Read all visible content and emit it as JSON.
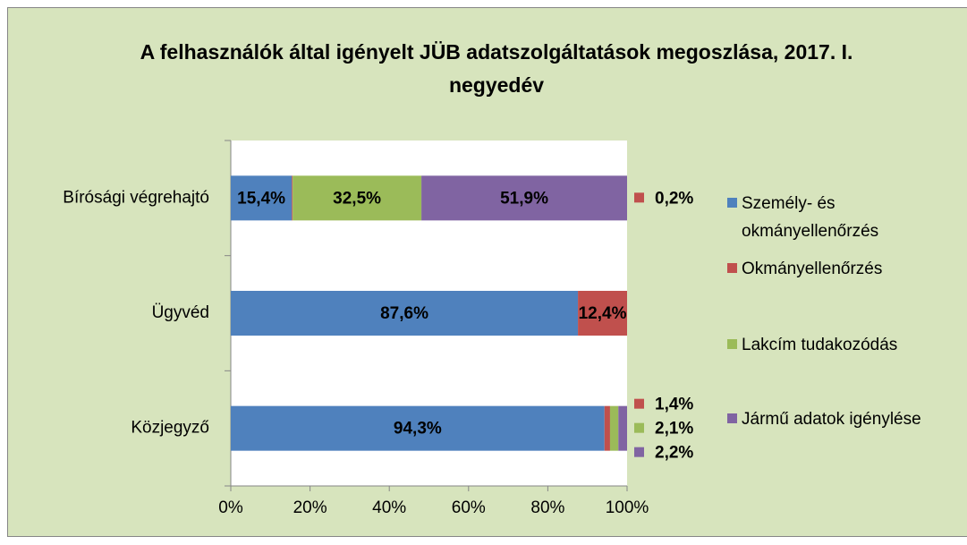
{
  "chart_data": {
    "type": "stacked-barh",
    "title": "A felhasználók által igényelt JÜB adatszolgáltatások megoszlása, 2017. I. negyedév",
    "categories": [
      "Bírósági végrehajtó",
      "Ügyvéd",
      "Közjegyző"
    ],
    "series": [
      {
        "name": "Személy- és okmányellenőrzés",
        "color": "#4f81bd",
        "values": [
          15.4,
          87.6,
          94.3
        ],
        "value_labels": [
          "15,4%",
          "87,6%",
          "94,3%"
        ]
      },
      {
        "name": "Okmányellenőrzés",
        "color": "#c0504d",
        "values": [
          0.2,
          12.4,
          1.4
        ],
        "value_labels": [
          "0,2%",
          "12,4%",
          "1,4%"
        ]
      },
      {
        "name": "Lakcím tudakozódás",
        "color": "#9bbb59",
        "values": [
          32.5,
          null,
          2.1
        ],
        "value_labels": [
          "32,5%",
          null,
          "2,1%"
        ]
      },
      {
        "name": "Jármű adatok igénylése",
        "color": "#8064a2",
        "values": [
          51.9,
          null,
          2.2
        ],
        "value_labels": [
          "51,9%",
          null,
          "2,2%"
        ]
      }
    ],
    "xlim": [
      0,
      100
    ],
    "xticks": [
      {
        "value": 0,
        "label": "0%"
      },
      {
        "value": 20,
        "label": "20%"
      },
      {
        "value": 40,
        "label": "40%"
      },
      {
        "value": 60,
        "label": "60%"
      },
      {
        "value": 80,
        "label": "80%"
      },
      {
        "value": 100,
        "label": "100%"
      }
    ],
    "legend": "right"
  }
}
